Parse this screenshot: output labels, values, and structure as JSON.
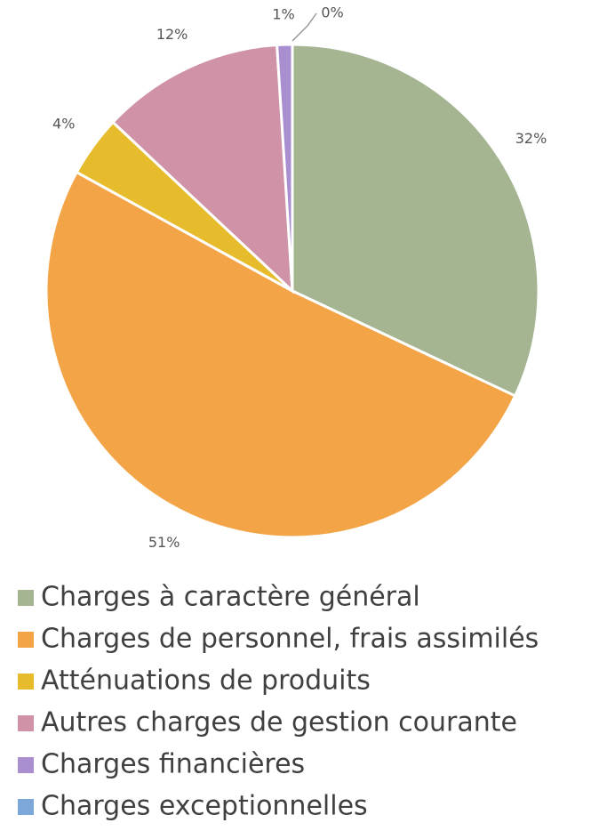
{
  "chart_data": {
    "type": "pie",
    "categories": [
      "Charges à caractère général",
      "Charges de personnel, frais assimilés",
      "Atténuations de produits",
      "Autres charges de gestion courante",
      "Charges financières",
      "Charges exceptionnelles"
    ],
    "values": [
      32,
      51,
      4,
      12,
      1,
      0
    ],
    "value_labels": [
      "32%",
      "51%",
      "4%",
      "12%",
      "1%",
      "0%"
    ],
    "colors": [
      "#a5b592",
      "#f3a446",
      "#e6bc2d",
      "#cf92a7",
      "#a98ed0",
      "#7da7d8"
    ],
    "legend": "bottom"
  }
}
